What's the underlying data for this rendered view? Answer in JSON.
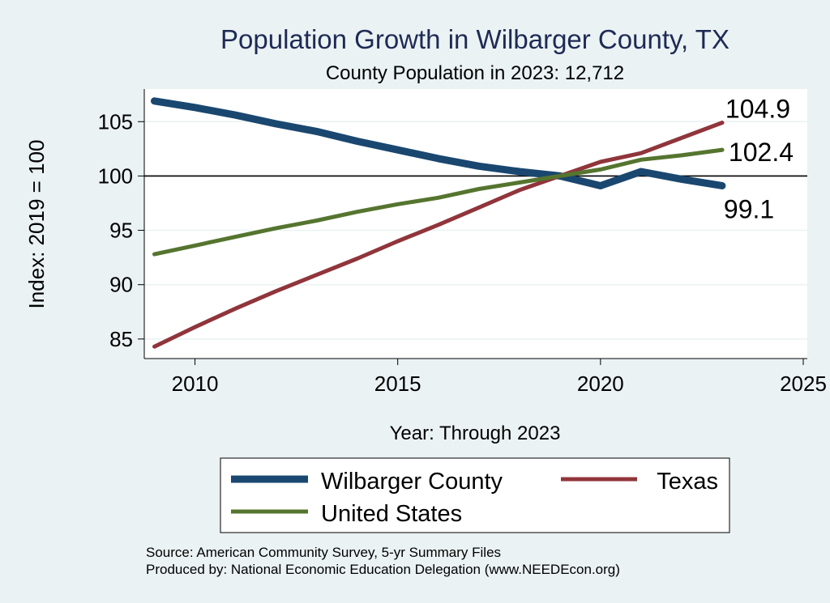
{
  "chart_data": {
    "type": "line",
    "title": "Population Growth in Wilbarger County, TX",
    "subtitle": "County Population in 2023: 12,712",
    "xlabel": "Year: Through 2023",
    "ylabel": "Index: 2019 = 100",
    "xlim": [
      2008.75,
      2025.1
    ],
    "ylim": [
      83.2,
      108.0
    ],
    "xticks": [
      2010,
      2015,
      2020,
      2025
    ],
    "yticks": [
      85,
      90,
      95,
      100,
      105
    ],
    "reference_line": 100,
    "x": [
      2009,
      2010,
      2011,
      2012,
      2013,
      2014,
      2015,
      2016,
      2017,
      2018,
      2019,
      2020,
      2021,
      2022,
      2023
    ],
    "series": [
      {
        "name": "Wilbarger  County",
        "color": "#1a476f",
        "width": 9,
        "values": [
          106.9,
          106.3,
          105.6,
          104.8,
          104.1,
          103.2,
          102.4,
          101.6,
          100.9,
          100.4,
          100.0,
          99.1,
          100.4,
          99.7,
          99.1
        ],
        "end_label": "99.1"
      },
      {
        "name": "Texas",
        "color": "#90353b",
        "width": 5,
        "values": [
          84.3,
          86.1,
          87.8,
          89.4,
          90.9,
          92.4,
          94.0,
          95.5,
          97.1,
          98.7,
          100.0,
          101.3,
          102.1,
          103.5,
          104.9
        ],
        "end_label": "104.9"
      },
      {
        "name": "United States",
        "color": "#55752f",
        "width": 5,
        "values": [
          92.8,
          93.6,
          94.4,
          95.2,
          95.9,
          96.7,
          97.4,
          98.0,
          98.8,
          99.4,
          100.0,
          100.6,
          101.5,
          101.9,
          102.4
        ],
        "end_label": "102.4"
      }
    ],
    "grid": true,
    "legend_position": "bottom"
  },
  "source_note": "Source: American Community Survey, 5-yr Summary Files",
  "producer_note": "Produced by: National Economic Education Delegation (www.NEEDEcon.org)"
}
